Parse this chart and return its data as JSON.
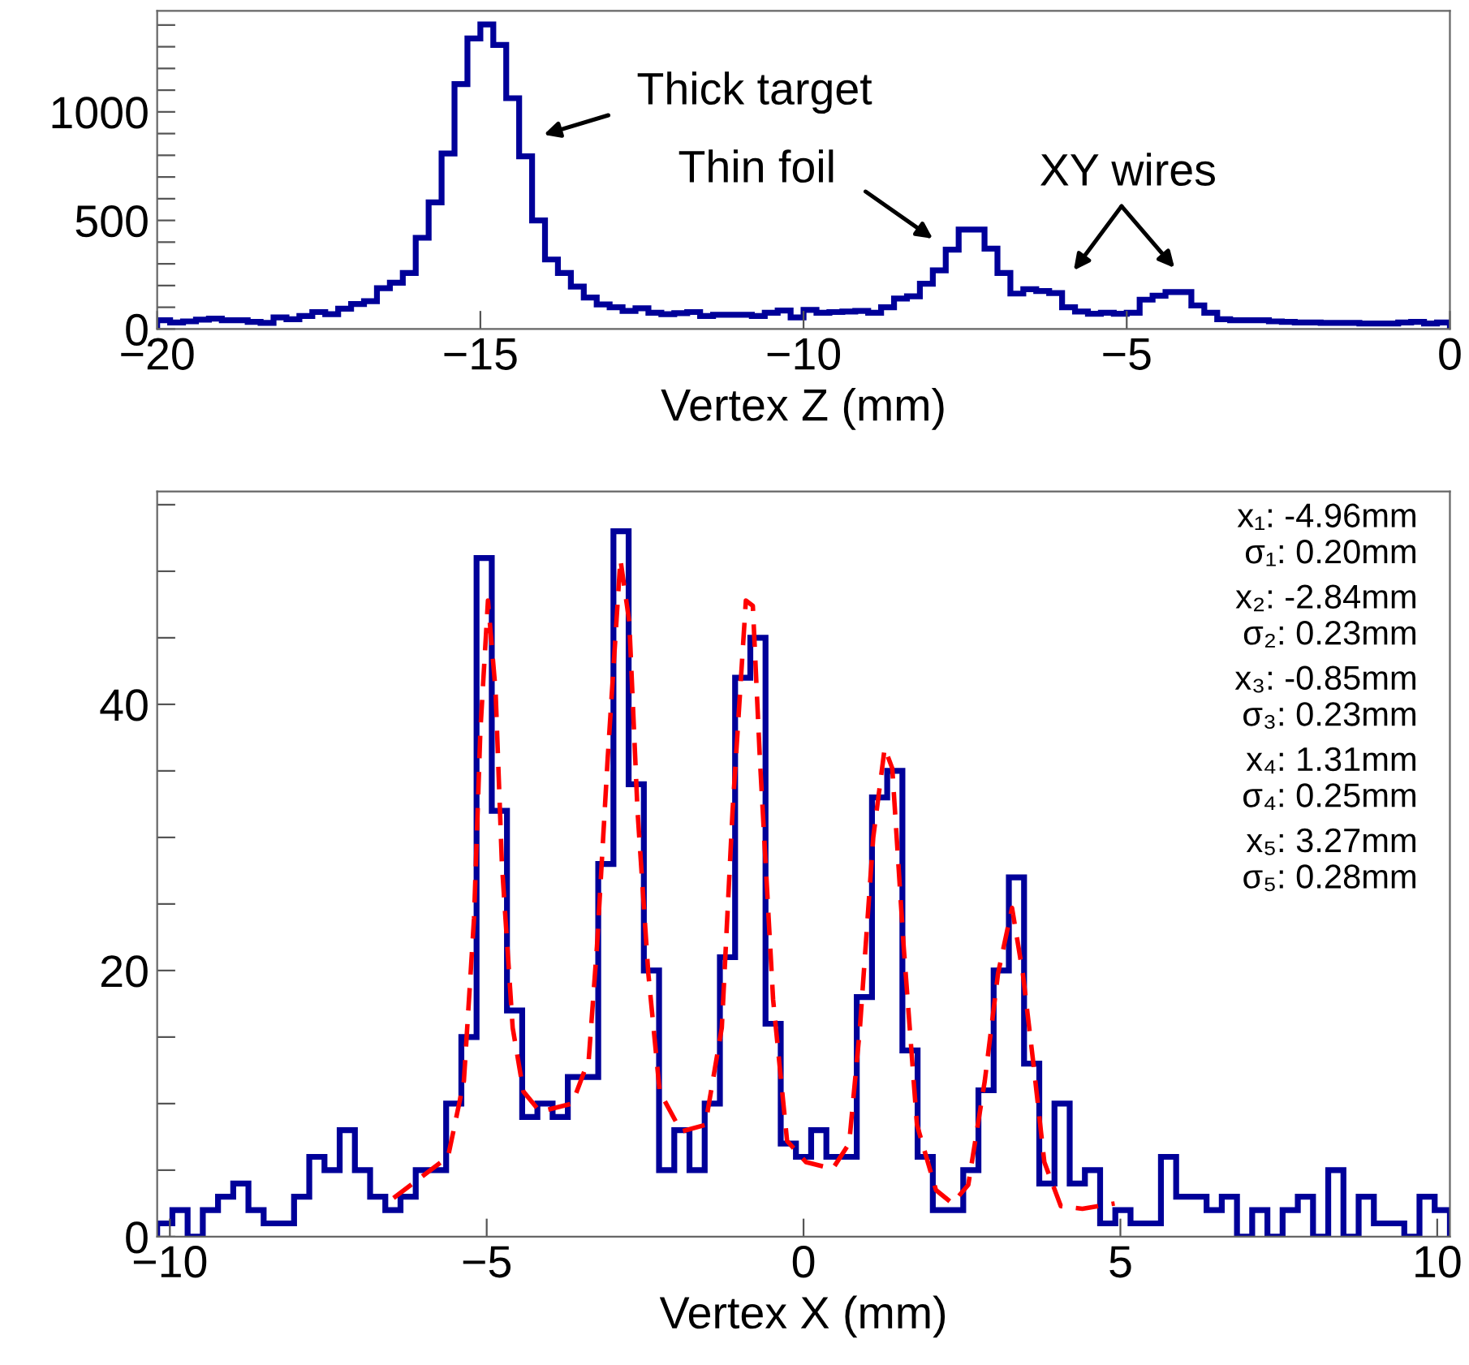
{
  "chart_data": [
    {
      "type": "histogram",
      "xlabel": "Vertex Z (mm)",
      "color": "#000099",
      "bins": [
        -20,
        -19.8,
        -19.6,
        -19.4,
        -19.2,
        -19,
        -18.8,
        -18.6,
        -18.4,
        -18.2,
        -18,
        -17.8,
        -17.6,
        -17.4,
        -17.2,
        -17,
        -16.8,
        -16.6,
        -16.4,
        -16.2,
        -16,
        -15.8,
        -15.6,
        -15.4,
        -15.2,
        -15,
        -14.8,
        -14.6,
        -14.4,
        -14.2,
        -14,
        -13.8,
        -13.6,
        -13.4,
        -13.2,
        -13,
        -12.8,
        -12.6,
        -12.4,
        -12.2,
        -12,
        -11.8,
        -11.6,
        -11.4,
        -11.2,
        -11,
        -10.8,
        -10.6,
        -10.4,
        -10.2,
        -10,
        -9.8,
        -9.6,
        -9.4,
        -9.2,
        -9,
        -8.8,
        -8.6,
        -8.4,
        -8.2,
        -8,
        -7.8,
        -7.6,
        -7.4,
        -7.2,
        -7,
        -6.8,
        -6.6,
        -6.4,
        -6.2,
        -6,
        -5.8,
        -5.6,
        -5.4,
        -5.2,
        -5,
        -4.8,
        -4.6,
        -4.4,
        -4.2,
        -4,
        -3.8,
        -3.6,
        -3.4,
        -3.2,
        -3,
        -2.8,
        -2.6,
        -2.4,
        -2.2,
        -2,
        -1.8,
        -1.6,
        -1.4,
        -1.2,
        -1,
        -0.8,
        -0.6,
        -0.4,
        -0.2,
        0
      ],
      "values": [
        40,
        30,
        35,
        43,
        48,
        40,
        40,
        33,
        28,
        53,
        45,
        60,
        78,
        68,
        93,
        115,
        128,
        188,
        213,
        258,
        420,
        583,
        808,
        1128,
        1338,
        1403,
        1308,
        1063,
        795,
        500,
        320,
        258,
        195,
        145,
        113,
        100,
        83,
        95,
        75,
        68,
        73,
        78,
        60,
        65,
        65,
        65,
        60,
        75,
        85,
        53,
        88,
        75,
        78,
        80,
        83,
        75,
        100,
        140,
        150,
        208,
        270,
        365,
        458,
        458,
        370,
        258,
        163,
        183,
        175,
        165,
        100,
        80,
        70,
        75,
        70,
        75,
        135,
        153,
        170,
        170,
        108,
        75,
        45,
        40,
        40,
        40,
        35,
        33,
        30,
        30,
        28,
        28,
        28,
        25,
        25,
        25,
        30,
        33,
        25,
        30
      ],
      "xlim": [
        -20,
        0
      ],
      "ylim": [
        0,
        1465
      ],
      "xticks": [
        {
          "value": -20,
          "label": "−20"
        },
        {
          "value": -15,
          "label": "−15"
        },
        {
          "value": -10,
          "label": "−10"
        },
        {
          "value": -5,
          "label": "−5"
        },
        0
      ],
      "yticks": [
        0,
        {
          "value": 100,
          "label": null
        },
        {
          "value": 200,
          "label": null
        },
        {
          "value": 300,
          "label": null
        },
        {
          "value": 400,
          "label": null
        },
        500,
        {
          "value": 600,
          "label": null
        },
        {
          "value": 700,
          "label": null
        },
        {
          "value": 800,
          "label": null
        },
        {
          "value": 900,
          "label": null
        },
        1000,
        {
          "value": 1100,
          "label": null
        },
        {
          "value": 1200,
          "label": null
        },
        {
          "value": 1300,
          "label": null
        },
        {
          "value": 1400,
          "label": null
        }
      ],
      "annotations": [
        "Thick target",
        "Thin foil",
        "XY wires"
      ]
    },
    {
      "type": "histogram",
      "xlabel": "Vertex X (mm)",
      "color": "#000099",
      "bins": [
        -10.2,
        -9.96,
        -9.72,
        -9.48,
        -9.24,
        -9.0,
        -8.76,
        -8.52,
        -8.28,
        -8.04,
        -7.8,
        -7.56,
        -7.32,
        -7.08,
        -6.84,
        -6.6,
        -6.36,
        -6.12,
        -5.88,
        -5.64,
        -5.4,
        -5.16,
        -4.92,
        -4.68,
        -4.44,
        -4.2,
        -3.96,
        -3.72,
        -3.48,
        -3.24,
        -3.0,
        -2.76,
        -2.52,
        -2.28,
        -2.04,
        -1.8,
        -1.56,
        -1.32,
        -1.08,
        -0.84,
        -0.6,
        -0.36,
        -0.12,
        0.12,
        0.36,
        0.6,
        0.84,
        1.08,
        1.32,
        1.56,
        1.8,
        2.04,
        2.28,
        2.52,
        2.76,
        3.0,
        3.24,
        3.48,
        3.72,
        3.96,
        4.2,
        4.44,
        4.68,
        4.92,
        5.16,
        5.4,
        5.64,
        5.88,
        6.12,
        6.36,
        6.6,
        6.84,
        7.08,
        7.32,
        7.56,
        7.8,
        8.04,
        8.28,
        8.52,
        8.76,
        9.0,
        9.24,
        9.48,
        9.72,
        9.96,
        10.2
      ],
      "values": [
        1,
        2,
        0,
        2,
        3,
        4,
        2,
        1,
        1,
        3,
        6,
        5,
        8,
        5,
        3,
        2,
        3,
        5,
        5,
        10,
        15,
        51,
        32,
        17,
        9,
        10,
        9,
        12,
        12,
        28,
        53,
        34,
        20,
        5,
        8,
        5,
        10,
        21,
        42,
        45,
        16,
        7,
        6,
        8,
        6,
        6,
        18,
        33,
        35,
        14,
        6,
        2,
        2,
        5,
        11,
        20,
        27,
        13,
        4,
        10,
        4,
        5,
        1,
        2,
        1,
        1,
        6,
        3,
        3,
        2,
        3,
        0,
        2,
        0,
        2,
        3,
        0,
        5,
        0,
        3,
        1,
        1,
        0,
        3,
        2
      ],
      "series": [
        {
          "type": "line",
          "color": "#ff0000",
          "line_style": "dashed",
          "x": [
            -6.47,
            -5.61,
            -5.36,
            -5.2,
            -5.1,
            -4.98,
            -4.86,
            -4.76,
            -4.59,
            -4.42,
            -4.16,
            -3.65,
            -3.39,
            -3.26,
            -3.09,
            -2.89,
            -2.75,
            -2.62,
            -2.45,
            -2.27,
            -1.93,
            -1.55,
            -1.29,
            -1.12,
            -0.91,
            -0.8,
            -0.69,
            -0.48,
            -0.26,
            0.04,
            0.46,
            0.72,
            0.89,
            1.1,
            1.28,
            1.4,
            1.58,
            1.79,
            2.09,
            2.35,
            2.6,
            2.86,
            3.07,
            3.29,
            3.46,
            3.63,
            3.8,
            4.06,
            4.4,
            4.91
          ],
          "values": [
            2.9,
            6.0,
            11.7,
            23.9,
            38,
            47.8,
            41,
            28,
            15.7,
            10.9,
            9.4,
            10.0,
            13.3,
            21.8,
            36,
            50.9,
            46.2,
            32,
            19.8,
            10.9,
            7.9,
            8.4,
            15.7,
            32,
            47.8,
            47.4,
            36,
            17.8,
            7.2,
            5.6,
            5.1,
            7.0,
            15.7,
            30,
            36.7,
            35.2,
            21.8,
            8.4,
            3.5,
            2.5,
            3.9,
            11.7,
            19.8,
            24.7,
            19.8,
            12.9,
            5.6,
            2.3,
            2.1,
            2.5
          ]
        }
      ],
      "xlim": [
        -10.2,
        10.2
      ],
      "ylim": [
        0,
        56
      ],
      "xticks": [
        {
          "value": -10,
          "label": "−10"
        },
        {
          "value": -5,
          "label": "−5"
        },
        0,
        5,
        10
      ],
      "yticks": [
        0,
        {
          "value": 5,
          "label": null
        },
        {
          "value": 10,
          "label": null
        },
        {
          "value": 15,
          "label": null
        },
        20,
        {
          "value": 25,
          "label": null
        },
        {
          "value": 30,
          "label": null
        },
        {
          "value": 35,
          "label": null
        },
        40,
        {
          "value": 45,
          "label": null
        },
        {
          "value": 50,
          "label": null
        },
        {
          "value": 55,
          "label": null
        }
      ],
      "annotations": [
        "x₁: -4.96mm",
        "σ₁: 0.20mm",
        "x₂: -2.84mm",
        "σ₂: 0.23mm",
        "x₃: -0.85mm",
        "σ₃: 0.23mm",
        "x₄: 1.31mm",
        "σ₄: 0.25mm",
        "x₅: 3.27mm",
        "σ₅: 0.28mm"
      ]
    }
  ]
}
